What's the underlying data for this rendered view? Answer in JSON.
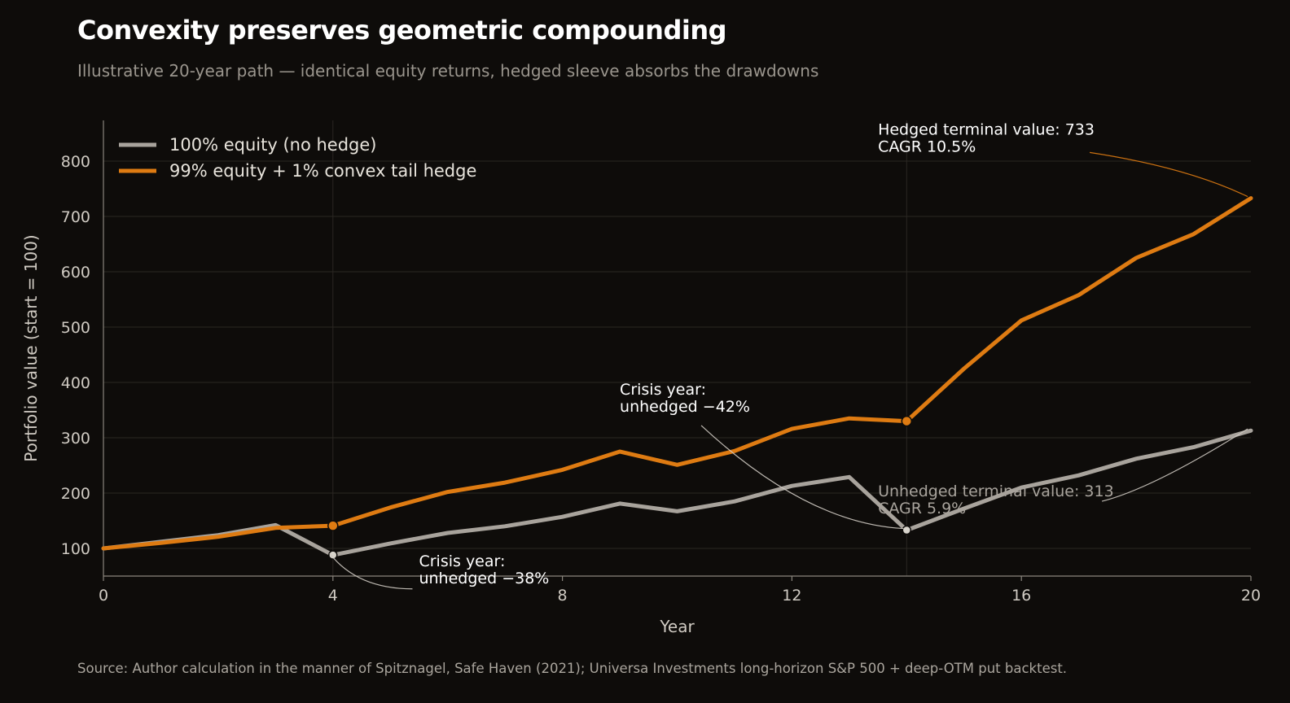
{
  "title": "Convexity preserves geometric compounding",
  "subtitle": "Illustrative 20-year path — identical equity returns, hedged sleeve absorbs the drawdowns",
  "source": "Source: Author calculation in the manner of Spitznagel, Safe Haven (2021); Universa Investments long-horizon S&P 500 + deep-OTM put backtest.",
  "colors": {
    "background": "#0e0c0a",
    "unhedged": "#a8a39c",
    "hedged": "#de7b12",
    "grid": "#2a2723",
    "axis": "#8a857d",
    "text": "#e8e4dc"
  },
  "chart_data": {
    "type": "line",
    "xlabel": "Year",
    "ylabel": "Portfolio value (start = 100)",
    "xlim": [
      0,
      20
    ],
    "ylim": [
      50,
      850
    ],
    "x_ticks": [
      0,
      4,
      8,
      12,
      16,
      20
    ],
    "y_ticks": [
      100,
      200,
      300,
      400,
      500,
      600,
      700,
      800
    ],
    "x_gridlines": [
      4,
      14
    ],
    "grid": true,
    "legend_position": "top-left",
    "x": [
      0,
      1,
      2,
      3,
      4,
      5,
      6,
      7,
      8,
      9,
      10,
      11,
      12,
      13,
      14,
      15,
      16,
      17,
      18,
      19,
      20
    ],
    "series": [
      {
        "name": "100% equity (no hedge)",
        "key": "unhedged",
        "values": [
          100,
          112,
          124,
          142,
          88,
          109,
          128,
          140,
          157,
          181,
          167,
          185,
          213,
          229,
          133,
          172,
          210,
          232,
          262,
          283,
          313
        ]
      },
      {
        "name": "99% equity + 1% convex tail hedge",
        "key": "hedged",
        "values": [
          100,
          110,
          121,
          137,
          141,
          174,
          202,
          219,
          242,
          275,
          251,
          276,
          316,
          335,
          330,
          425,
          512,
          558,
          625,
          668,
          733
        ]
      }
    ],
    "markers": [
      {
        "series": "unhedged",
        "x": 4,
        "y": 88
      },
      {
        "series": "hedged",
        "x": 4,
        "y": 141
      },
      {
        "series": "unhedged",
        "x": 14,
        "y": 133
      },
      {
        "series": "hedged",
        "x": 14,
        "y": 330
      }
    ],
    "annotations": [
      {
        "lines": [
          "Crisis year:",
          "unhedged −38%"
        ],
        "series": "unhedged",
        "x": 4,
        "y": 88,
        "text_x": 5.5,
        "text_y": 68,
        "curve": "down"
      },
      {
        "lines": [
          "Crisis year:",
          "unhedged −42%"
        ],
        "series": "unhedged",
        "x": 14,
        "y": 133,
        "text_x": 9.0,
        "text_y": 378,
        "curve": "down"
      },
      {
        "lines": [
          "Hedged terminal value: 733",
          "CAGR 10.5%"
        ],
        "series": "hedged",
        "x": 20,
        "y": 733,
        "text_x": 13.5,
        "text_y": 848,
        "curve": "up"
      },
      {
        "lines": [
          "Unhedged terminal value: 313",
          "CAGR 5.9%"
        ],
        "series": "unhedged",
        "x": 20,
        "y": 313,
        "text_x": 13.5,
        "text_y": 194,
        "curve": "down"
      }
    ]
  }
}
